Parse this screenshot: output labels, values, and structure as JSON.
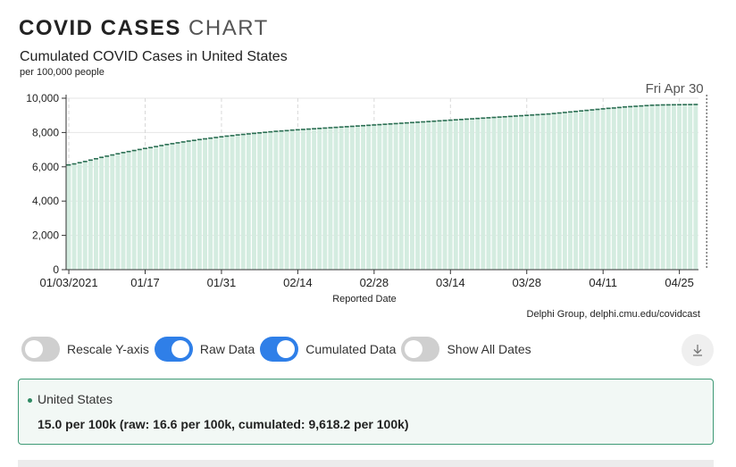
{
  "heading": {
    "strong": "COVID CASES",
    "light": "CHART"
  },
  "subtitle": "Cumulated COVID Cases in United States",
  "unit": "per 100,000 people",
  "credit": "Delphi Group, delphi.cmu.edu/covidcast",
  "controls": [
    {
      "label": "Rescale Y-axis",
      "on": false
    },
    {
      "label": "Raw Data",
      "on": true
    },
    {
      "label": "Cumulated Data",
      "on": true
    },
    {
      "label": "Show All Dates",
      "on": false
    }
  ],
  "info": {
    "region": "United States",
    "value": "15.0 per 100k (raw: 16.6 per 100k, cumulated: 9,618.2 per 100k)"
  },
  "colors": {
    "bar_fill": "#d4ece0",
    "line": "#2a6e52",
    "grid": "#e6e6e6",
    "toggle_on": "#2f7fe8",
    "toggle_off": "#cfcfcf",
    "info_border": "#3f9a76"
  },
  "icons": {
    "download": "download-icon"
  },
  "chart_data": {
    "type": "bar",
    "title": "Cumulated COVID Cases in United States",
    "xlabel": "Reported Date",
    "ylabel": "",
    "x_start": "2021-01-03",
    "ylim": [
      0,
      10000
    ],
    "yticks": [
      0,
      2000,
      4000,
      6000,
      8000,
      10000
    ],
    "ytick_labels": [
      "0",
      "2,000",
      "4,000",
      "6,000",
      "8,000",
      "10,000"
    ],
    "xticks": [
      "2021-01-03",
      "2021-01-17",
      "2021-01-31",
      "2021-02-14",
      "2021-02-28",
      "2021-03-14",
      "2021-03-28",
      "2021-04-11",
      "2021-04-25"
    ],
    "xtick_labels": [
      "01/03/2021",
      "01/17",
      "01/31",
      "02/14",
      "02/28",
      "03/14",
      "03/28",
      "04/11",
      "04/25"
    ],
    "highlight": {
      "date": "2021-04-30",
      "label": "Fri Apr 30"
    },
    "grid": true,
    "series": [
      {
        "values": [
          6110,
          6170,
          6240,
          6310,
          6390,
          6470,
          6550,
          6620,
          6690,
          6760,
          6830,
          6890,
          6950,
          7010,
          7070,
          7120,
          7180,
          7240,
          7300,
          7350,
          7400,
          7450,
          7500,
          7540,
          7590,
          7630,
          7670,
          7710,
          7750,
          7790,
          7820,
          7860,
          7890,
          7920,
          7950,
          7980,
          8010,
          8040,
          8070,
          8090,
          8110,
          8140,
          8160,
          8180,
          8200,
          8220,
          8240,
          8260,
          8280,
          8300,
          8320,
          8340,
          8360,
          8380,
          8400,
          8420,
          8440,
          8460,
          8480,
          8500,
          8520,
          8540,
          8560,
          8580,
          8600,
          8620,
          8640,
          8660,
          8680,
          8700,
          8720,
          8740,
          8760,
          8780,
          8800,
          8820,
          8840,
          8860,
          8880,
          8900,
          8920,
          8940,
          8960,
          8980,
          9000,
          9020,
          9040,
          9060,
          9080,
          9110,
          9140,
          9170,
          9200,
          9230,
          9260,
          9290,
          9320,
          9350,
          9380,
          9410,
          9430,
          9460,
          9490,
          9510,
          9530,
          9550,
          9570,
          9590,
          9600,
          9610,
          9614,
          9618.2,
          9622,
          9626,
          9630,
          9635
        ]
      }
    ]
  }
}
